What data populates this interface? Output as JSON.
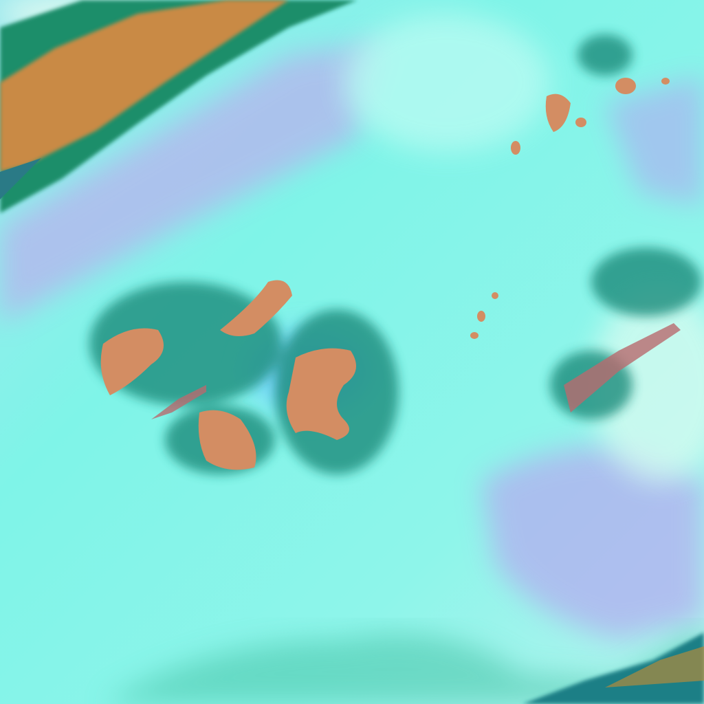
{
  "image": {
    "kind": "false-color satellite imagery",
    "colors": {
      "cloud_cyan": "#6ff3e6",
      "cloud_bright": "#c8fbf2",
      "haze_lavender": "#b9b4ee",
      "terrain_orange": "#d4895a",
      "terrain_brown": "#b8743a",
      "vegetation_green": "#1f8c5a",
      "shadow_teal": "#1a7f86"
    }
  }
}
